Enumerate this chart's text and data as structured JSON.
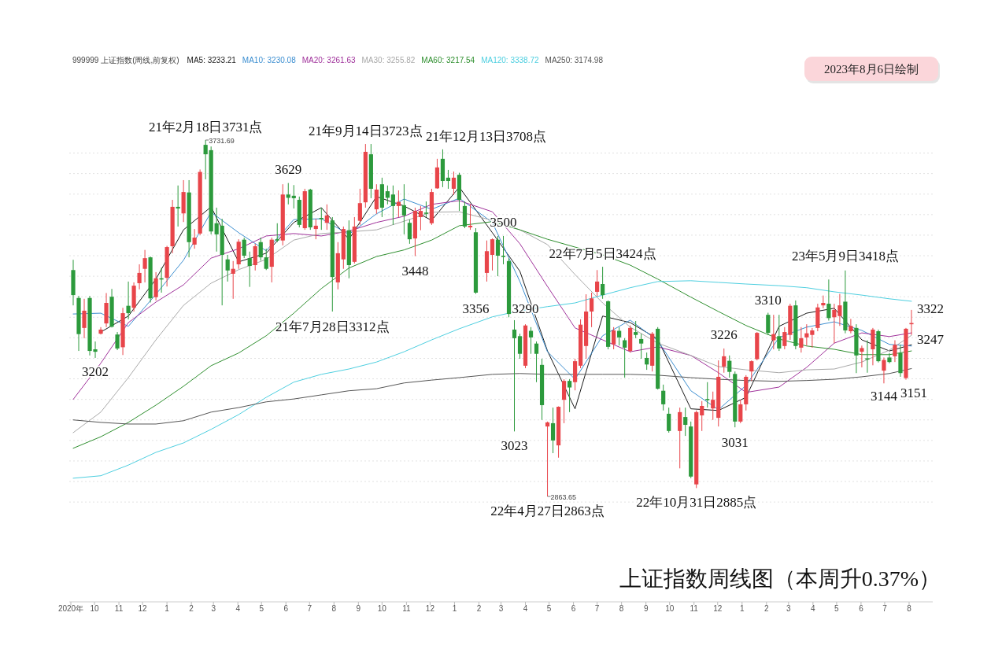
{
  "chart_data": {
    "type": "candlestick",
    "title": "上证指数周线图（本周升0.37%）",
    "subtitle": "999999 上证指数(周线,前复权)",
    "x": [
      "2020-09-04",
      "2020-09-11",
      "2020-09-18",
      "2020-09-25",
      "2020-10-02",
      "2020-10-09",
      "2020-10-16",
      "2020-10-23",
      "2020-10-30",
      "2020-11-06",
      "2020-11-13",
      "2020-11-20",
      "2020-11-27",
      "2020-12-04",
      "2020-12-11",
      "2020-12-18",
      "2020-12-25",
      "2021-01-01",
      "2021-01-08",
      "2021-01-15",
      "2021-01-22",
      "2021-01-29",
      "2021-02-05",
      "2021-02-12",
      "2021-02-19",
      "2021-02-26",
      "2021-03-05",
      "2021-03-12",
      "2021-03-19",
      "2021-03-26",
      "2021-04-02",
      "2021-04-09",
      "2021-04-16",
      "2021-04-23",
      "2021-04-30",
      "2021-05-07",
      "2021-05-14",
      "2021-05-21",
      "2021-05-28",
      "2021-06-04",
      "2021-06-11",
      "2021-06-18",
      "2021-06-25",
      "2021-07-02",
      "2021-07-09",
      "2021-07-16",
      "2021-07-23",
      "2021-07-30",
      "2021-08-06",
      "2021-08-13",
      "2021-08-20",
      "2021-08-27",
      "2021-09-03",
      "2021-09-10",
      "2021-09-17",
      "2021-09-24",
      "2021-10-01",
      "2021-10-08",
      "2021-10-15",
      "2021-10-22",
      "2021-10-29",
      "2021-11-05",
      "2021-11-12",
      "2021-11-19",
      "2021-11-26",
      "2021-12-03",
      "2021-12-10",
      "2021-12-17",
      "2021-12-24",
      "2021-12-31",
      "2022-01-07",
      "2022-01-14",
      "2022-01-21",
      "2022-01-28",
      "2022-02-11",
      "2022-02-18",
      "2022-02-25",
      "2022-03-04",
      "2022-03-11",
      "2022-03-18",
      "2022-03-25",
      "2022-04-01",
      "2022-04-08",
      "2022-04-15",
      "2022-04-22",
      "2022-04-29",
      "2022-05-06",
      "2022-05-13",
      "2022-05-20",
      "2022-05-27",
      "2022-06-03",
      "2022-06-10",
      "2022-06-17",
      "2022-06-24",
      "2022-07-01",
      "2022-07-08",
      "2022-07-15",
      "2022-07-22",
      "2022-07-29",
      "2022-08-05",
      "2022-08-12",
      "2022-08-19",
      "2022-08-26",
      "2022-09-02",
      "2022-09-09",
      "2022-09-16",
      "2022-09-23",
      "2022-09-30",
      "2022-10-14",
      "2022-10-21",
      "2022-10-28",
      "2022-11-04",
      "2022-11-11",
      "2022-11-18",
      "2022-11-25",
      "2022-12-02",
      "2022-12-09",
      "2022-12-16",
      "2022-12-23",
      "2022-12-30",
      "2023-01-06",
      "2023-01-13",
      "2023-01-20",
      "2023-02-03",
      "2023-02-10",
      "2023-02-17",
      "2023-02-24",
      "2023-03-03",
      "2023-03-10",
      "2023-03-17",
      "2023-03-24",
      "2023-03-31",
      "2023-04-07",
      "2023-04-14",
      "2023-04-21",
      "2023-04-28",
      "2023-05-05",
      "2023-05-12",
      "2023-05-19",
      "2023-05-26",
      "2023-06-02",
      "2023-06-09",
      "2023-06-16",
      "2023-06-23",
      "2023-06-30",
      "2023-07-07",
      "2023-07-14",
      "2023-07-21",
      "2023-07-28",
      "2023-08-04"
    ],
    "ohlc": [
      [
        3415,
        3440,
        3329,
        3354
      ],
      [
        3347,
        3352,
        3218,
        3259
      ],
      [
        3274,
        3345,
        3249,
        3316
      ],
      [
        3347,
        3352,
        3207,
        3218
      ],
      [
        3222,
        3241,
        3201,
        3216
      ],
      [
        3260,
        3276,
        3258,
        3270
      ],
      [
        3285,
        3359,
        3276,
        3335
      ],
      [
        3350,
        3369,
        3275,
        3277
      ],
      [
        3258,
        3264,
        3220,
        3224
      ],
      [
        3227,
        3323,
        3208,
        3310
      ],
      [
        3328,
        3387,
        3295,
        3310
      ],
      [
        3323,
        3385,
        3314,
        3377
      ],
      [
        3383,
        3429,
        3368,
        3408
      ],
      [
        3418,
        3464,
        3385,
        3444
      ],
      [
        3446,
        3448,
        3336,
        3346
      ],
      [
        3349,
        3410,
        3341,
        3395
      ],
      [
        3395,
        3421,
        3360,
        3392
      ],
      [
        3396,
        3474,
        3375,
        3471
      ],
      [
        3473,
        3586,
        3456,
        3569
      ],
      [
        3569,
        3621,
        3521,
        3565
      ],
      [
        3553,
        3634,
        3532,
        3605
      ],
      [
        3604,
        3634,
        3446,
        3483
      ],
      [
        3477,
        3515,
        3467,
        3494
      ],
      [
        3504,
        3660,
        3500,
        3654
      ],
      [
        3720,
        3731.69,
        3636,
        3697
      ],
      [
        3707,
        3716,
        3502,
        3509
      ],
      [
        3529,
        3567,
        3460,
        3502
      ],
      [
        3523,
        3540,
        3329,
        3452
      ],
      [
        3441,
        3452,
        3387,
        3414
      ],
      [
        3406,
        3437,
        3345,
        3418
      ],
      [
        3429,
        3490,
        3418,
        3484
      ],
      [
        3489,
        3494,
        3444,
        3450
      ],
      [
        3444,
        3460,
        3374,
        3425
      ],
      [
        3427,
        3479,
        3414,
        3473
      ],
      [
        3483,
        3494,
        3438,
        3446
      ],
      [
        3446,
        3467,
        3415,
        3418
      ],
      [
        3423,
        3494,
        3385,
        3489
      ],
      [
        3490,
        3529,
        3483,
        3487
      ],
      [
        3487,
        3624,
        3475,
        3599
      ],
      [
        3599,
        3627,
        3575,
        3591
      ],
      [
        3596,
        3622,
        3565,
        3590
      ],
      [
        3586,
        3594,
        3519,
        3525
      ],
      [
        3517,
        3613,
        3513,
        3607
      ],
      [
        3611,
        3613,
        3513,
        3519
      ],
      [
        3515,
        3540,
        3490,
        3523
      ],
      [
        3542,
        3567,
        3513,
        3539
      ],
      [
        3530,
        3575,
        3513,
        3548
      ],
      [
        3536,
        3544,
        3314,
        3398
      ],
      [
        3385,
        3483,
        3368,
        3456
      ],
      [
        3441,
        3521,
        3418,
        3515
      ],
      [
        3512,
        3536,
        3395,
        3427
      ],
      [
        3435,
        3544,
        3431,
        3521
      ],
      [
        3535,
        3613,
        3525,
        3578
      ],
      [
        3580,
        3722,
        3567,
        3703
      ],
      [
        3697,
        3722,
        3590,
        3613
      ],
      [
        3563,
        3624,
        3552,
        3611
      ],
      [
        3624,
        3640,
        3544,
        3567
      ],
      [
        3607,
        3621,
        3575,
        3591
      ],
      [
        3599,
        3621,
        3525,
        3571
      ],
      [
        3571,
        3609,
        3544,
        3581
      ],
      [
        3573,
        3624,
        3502,
        3548
      ],
      [
        3530,
        3538,
        3479,
        3490
      ],
      [
        3492,
        3567,
        3449,
        3559
      ],
      [
        3544,
        3571,
        3512,
        3559
      ],
      [
        3555,
        3582,
        3544,
        3552
      ],
      [
        3529,
        3613,
        3525,
        3605
      ],
      [
        3614,
        3686,
        3613,
        3665
      ],
      [
        3686,
        3709,
        3617,
        3632
      ],
      [
        3640,
        3659,
        3613,
        3632
      ],
      [
        3613,
        3655,
        3598,
        3640
      ],
      [
        3647,
        3652,
        3559,
        3586
      ],
      [
        3571,
        3582,
        3517,
        3521
      ],
      [
        3519,
        3575,
        3513,
        3523
      ],
      [
        3507,
        3517,
        3357,
        3360
      ],
      [
        3408,
        3487,
        3387,
        3461
      ],
      [
        3452,
        3492,
        3414,
        3490
      ],
      [
        3489,
        3498,
        3400,
        3450
      ],
      [
        3450,
        3498,
        3429,
        3447
      ],
      [
        3437,
        3444,
        3300,
        3308
      ],
      [
        3270,
        3293,
        3022,
        3249
      ],
      [
        3254,
        3260,
        3199,
        3211
      ],
      [
        3182,
        3283,
        3176,
        3280
      ],
      [
        3267,
        3276,
        3211,
        3251
      ],
      [
        3236,
        3241,
        3142,
        3211
      ],
      [
        3184,
        3199,
        3050,
        3086
      ],
      [
        3034,
        3046,
        2863.65,
        3044
      ],
      [
        3042,
        3080,
        2969,
        3000
      ],
      [
        2988,
        3083,
        2958,
        3082
      ],
      [
        3099,
        3149,
        3042,
        3145
      ],
      [
        3145,
        3149,
        3069,
        3129
      ],
      [
        3142,
        3199,
        3122,
        3193
      ],
      [
        3182,
        3295,
        3176,
        3282
      ],
      [
        3230,
        3356,
        3199,
        3314
      ],
      [
        3314,
        3360,
        3276,
        3346
      ],
      [
        3362,
        3415,
        3351,
        3387
      ],
      [
        3381,
        3423,
        3345,
        3354
      ],
      [
        3339,
        3341,
        3222,
        3228
      ],
      [
        3234,
        3276,
        3222,
        3268
      ],
      [
        3267,
        3276,
        3231,
        3251
      ],
      [
        3244,
        3249,
        3153,
        3226
      ],
      [
        3218,
        3280,
        3214,
        3274
      ],
      [
        3264,
        3291,
        3249,
        3257
      ],
      [
        3247,
        3260,
        3199,
        3236
      ],
      [
        3201,
        3214,
        3172,
        3185
      ],
      [
        3182,
        3264,
        3168,
        3260
      ],
      [
        3272,
        3276,
        3124,
        3126
      ],
      [
        3121,
        3136,
        3073,
        3088
      ],
      [
        3065,
        3080,
        3019,
        3023
      ],
      [
        3023,
        3080,
        2932,
        3069
      ],
      [
        3057,
        3080,
        3011,
        3038
      ],
      [
        3034,
        3046,
        2908,
        2912
      ],
      [
        2893,
        3073,
        2884,
        3069
      ],
      [
        3061,
        3096,
        3023,
        3084
      ],
      [
        3101,
        3142,
        3080,
        3098
      ],
      [
        3078,
        3119,
        3050,
        3099
      ],
      [
        3055,
        3195,
        3034,
        3155
      ],
      [
        3180,
        3224,
        3165,
        3205
      ],
      [
        3194,
        3207,
        3153,
        3167
      ],
      [
        3162,
        3168,
        3032,
        3046
      ],
      [
        3046,
        3099,
        3042,
        3088
      ],
      [
        3088,
        3159,
        3073,
        3155
      ],
      [
        3168,
        3195,
        3145,
        3193
      ],
      [
        3198,
        3264,
        3195,
        3262
      ],
      [
        3306,
        3311,
        3257,
        3262
      ],
      [
        3244,
        3306,
        3222,
        3259
      ],
      [
        3254,
        3306,
        3218,
        3224
      ],
      [
        3230,
        3276,
        3222,
        3264
      ],
      [
        3257,
        3333,
        3245,
        3328
      ],
      [
        3329,
        3341,
        3222,
        3230
      ],
      [
        3226,
        3276,
        3214,
        3249
      ],
      [
        3251,
        3283,
        3231,
        3261
      ],
      [
        3257,
        3274,
        3226,
        3268
      ],
      [
        3274,
        3333,
        3266,
        3324
      ],
      [
        3329,
        3353,
        3322,
        3335
      ],
      [
        3333,
        3392,
        3292,
        3298
      ],
      [
        3300,
        3333,
        3237,
        3318
      ],
      [
        3303,
        3357,
        3279,
        3329
      ],
      [
        3338,
        3414,
        3261,
        3268
      ],
      [
        3266,
        3296,
        3261,
        3279
      ],
      [
        3274,
        3283,
        3164,
        3207
      ],
      [
        3216,
        3231,
        3178,
        3225
      ],
      [
        3200,
        3244,
        3165,
        3197
      ],
      [
        3222,
        3274,
        3183,
        3270
      ],
      [
        3266,
        3270,
        3190,
        3193
      ],
      [
        3170,
        3202,
        3139,
        3196
      ],
      [
        3202,
        3213,
        3188,
        3191
      ],
      [
        3205,
        3244,
        3191,
        3233
      ],
      [
        3213,
        3233,
        3155,
        3164
      ],
      [
        3152,
        3274,
        3148,
        3272
      ],
      [
        3283,
        3318,
        3257,
        3286
      ]
    ],
    "series": [
      {
        "name": "MA5: 3233.21",
        "type": "line",
        "color": "#1a1a1a",
        "x": [
          "2020-10-09",
          "2020-11-13",
          "2020-12-18",
          "2021-01-22",
          "2021-02-26",
          "2021-04-02",
          "2021-05-07",
          "2021-06-11",
          "2021-07-16",
          "2021-08-20",
          "2021-09-24",
          "2021-10-29",
          "2021-12-03",
          "2022-01-07",
          "2022-02-18",
          "2022-03-25",
          "2022-04-29",
          "2022-06-03",
          "2022-07-08",
          "2022-08-12",
          "2022-09-16",
          "2022-10-28",
          "2022-12-02",
          "2023-01-06",
          "2023-02-17",
          "2023-03-24",
          "2023-04-28",
          "2023-06-02",
          "2023-07-07",
          "2023-08-04"
        ],
        "values": [
          3264,
          3303,
          3393,
          3513,
          3569,
          3435,
          3456,
          3531,
          3567,
          3490,
          3594,
          3571,
          3536,
          3617,
          3506,
          3412,
          3218,
          3077,
          3303,
          3287,
          3247,
          3077,
          3073,
          3105,
          3278,
          3310,
          3322,
          3245,
          3218,
          3233
        ]
      },
      {
        "name": "MA10: 3230.08",
        "type": "line",
        "color": "#3d8fd1",
        "x": [
          "2020-09-04",
          "2020-10-09",
          "2020-11-13",
          "2020-12-18",
          "2021-01-22",
          "2021-02-26",
          "2021-04-02",
          "2021-05-07",
          "2021-06-11",
          "2021-07-16",
          "2021-08-20",
          "2021-09-24",
          "2021-10-29",
          "2021-12-03",
          "2022-01-07",
          "2022-02-18",
          "2022-03-25",
          "2022-04-29",
          "2022-06-03",
          "2022-07-08",
          "2022-08-12",
          "2022-09-16",
          "2022-10-28",
          "2022-12-02",
          "2023-01-06",
          "2023-02-17",
          "2023-03-24",
          "2023-04-28",
          "2023-06-02",
          "2023-07-07",
          "2023-08-04"
        ],
        "values": [
          3308,
          3310,
          3278,
          3356,
          3439,
          3556,
          3506,
          3462,
          3538,
          3540,
          3502,
          3552,
          3588,
          3563,
          3590,
          3531,
          3387,
          3216,
          3149,
          3255,
          3293,
          3243,
          3121,
          3075,
          3134,
          3251,
          3276,
          3289,
          3268,
          3234,
          3230
        ]
      },
      {
        "name": "MA20: 3261.63",
        "type": "line",
        "color": "#a0329b",
        "x": [
          "2020-09-04",
          "2020-10-09",
          "2020-11-13",
          "2020-12-18",
          "2021-01-22",
          "2021-02-26",
          "2021-04-02",
          "2021-05-07",
          "2021-06-11",
          "2021-07-16",
          "2021-08-20",
          "2021-09-24",
          "2021-10-29",
          "2021-12-03",
          "2022-01-07",
          "2022-02-18",
          "2022-03-25",
          "2022-04-29",
          "2022-06-03",
          "2022-07-08",
          "2022-08-12",
          "2022-09-16",
          "2022-10-28",
          "2022-12-02",
          "2023-01-06",
          "2023-02-17",
          "2023-03-24",
          "2023-04-28",
          "2023-06-02",
          "2023-07-07",
          "2023-08-04"
        ],
        "values": [
          3100,
          3188,
          3287,
          3337,
          3379,
          3444,
          3467,
          3498,
          3504,
          3498,
          3510,
          3531,
          3546,
          3575,
          3584,
          3557,
          3479,
          3375,
          3274,
          3245,
          3216,
          3228,
          3207,
          3165,
          3117,
          3130,
          3178,
          3237,
          3262,
          3253,
          3262
        ]
      },
      {
        "name": "MA30: 3255.82",
        "type": "line",
        "color": "#a9a9a9",
        "x": [
          "2020-09-04",
          "2020-10-09",
          "2020-11-13",
          "2020-12-18",
          "2021-01-22",
          "2021-02-26",
          "2021-04-02",
          "2021-05-07",
          "2021-06-11",
          "2021-07-16",
          "2021-08-20",
          "2021-09-24",
          "2021-10-29",
          "2021-12-03",
          "2022-01-07",
          "2022-02-18",
          "2022-03-25",
          "2022-04-29",
          "2022-06-03",
          "2022-07-08",
          "2022-08-12",
          "2022-09-16",
          "2022-10-28",
          "2022-12-02",
          "2023-01-06",
          "2023-02-17",
          "2023-03-24",
          "2023-04-28",
          "2023-06-02",
          "2023-07-07",
          "2023-08-04"
        ],
        "values": [
          3019,
          3069,
          3153,
          3245,
          3329,
          3383,
          3416,
          3441,
          3488,
          3504,
          3508,
          3513,
          3534,
          3556,
          3557,
          3536,
          3513,
          3477,
          3404,
          3335,
          3276,
          3237,
          3207,
          3180,
          3172,
          3165,
          3172,
          3174,
          3191,
          3220,
          3256
        ]
      },
      {
        "name": "MA60: 3217.54",
        "type": "line",
        "color": "#2f8f2f",
        "x": [
          "2020-09-04",
          "2020-10-09",
          "2020-11-13",
          "2020-12-18",
          "2021-01-22",
          "2021-02-26",
          "2021-04-02",
          "2021-05-07",
          "2021-06-11",
          "2021-07-16",
          "2021-08-20",
          "2021-09-24",
          "2021-10-29",
          "2021-12-03",
          "2022-01-07",
          "2022-02-18",
          "2022-03-25",
          "2022-04-29",
          "2022-06-03",
          "2022-07-08",
          "2022-08-12",
          "2022-09-16",
          "2022-10-28",
          "2022-12-02",
          "2023-01-06",
          "2023-02-17",
          "2023-03-24",
          "2023-04-28",
          "2023-06-02",
          "2023-07-07",
          "2023-08-04"
        ],
        "values": [
          2981,
          3009,
          3044,
          3086,
          3132,
          3182,
          3213,
          3255,
          3310,
          3370,
          3420,
          3448,
          3464,
          3488,
          3523,
          3533,
          3513,
          3490,
          3471,
          3452,
          3427,
          3393,
          3349,
          3314,
          3280,
          3247,
          3230,
          3222,
          3209,
          3209,
          3218
        ]
      },
      {
        "name": "MA120: 3338.72",
        "type": "line",
        "color": "#4ecfe0",
        "x": [
          "2020-09-04",
          "2020-10-09",
          "2020-11-13",
          "2020-12-18",
          "2021-01-22",
          "2021-02-26",
          "2021-04-02",
          "2021-05-07",
          "2021-06-11",
          "2021-07-16",
          "2021-08-20",
          "2021-09-24",
          "2021-10-29",
          "2021-12-03",
          "2022-01-07",
          "2022-02-18",
          "2022-03-25",
          "2022-04-29",
          "2022-06-03",
          "2022-07-08",
          "2022-08-12",
          "2022-09-16",
          "2022-10-28",
          "2022-12-02",
          "2023-01-06",
          "2023-02-17",
          "2023-03-24",
          "2023-04-28",
          "2023-06-02",
          "2023-07-07",
          "2023-08-04"
        ],
        "values": [
          2908,
          2914,
          2940,
          2971,
          2994,
          3027,
          3063,
          3105,
          3142,
          3161,
          3174,
          3191,
          3216,
          3245,
          3272,
          3301,
          3316,
          3326,
          3335,
          3354,
          3372,
          3387,
          3389,
          3385,
          3381,
          3377,
          3372,
          3362,
          3354,
          3345,
          3339
        ]
      },
      {
        "name": "MA250: 3174.98",
        "type": "line",
        "color": "#555555",
        "x": [
          "2020-09-04",
          "2020-10-09",
          "2020-11-13",
          "2020-12-18",
          "2021-01-22",
          "2021-02-26",
          "2021-04-02",
          "2021-05-07",
          "2021-06-11",
          "2021-07-16",
          "2021-08-20",
          "2021-09-24",
          "2021-10-29",
          "2021-12-03",
          "2022-01-07",
          "2022-02-18",
          "2022-03-25",
          "2022-04-29",
          "2022-06-03",
          "2022-07-08",
          "2022-08-12",
          "2022-09-16",
          "2022-10-28",
          "2022-12-02",
          "2023-01-06",
          "2023-02-17",
          "2023-03-24",
          "2023-04-28",
          "2023-06-02",
          "2023-07-07",
          "2023-08-04"
        ],
        "values": [
          3050,
          3044,
          3040,
          3040,
          3048,
          3069,
          3080,
          3094,
          3101,
          3111,
          3121,
          3126,
          3140,
          3147,
          3153,
          3161,
          3163,
          3161,
          3161,
          3161,
          3161,
          3159,
          3153,
          3149,
          3146,
          3144,
          3146,
          3149,
          3155,
          3163,
          3175
        ]
      }
    ],
    "xlim": [
      "2020-08-30",
      "2023-08-31"
    ],
    "xticks": [
      {
        "value": "2020-09-01",
        "label": "2020年"
      },
      {
        "value": "2020-10-01",
        "label": "10"
      },
      {
        "value": "2020-11-01",
        "label": "11"
      },
      {
        "value": "2020-12-01",
        "label": "12"
      },
      {
        "value": "2021-01-01",
        "label": "1"
      },
      {
        "value": "2021-02-01",
        "label": "2"
      },
      {
        "value": "2021-03-01",
        "label": "3"
      },
      {
        "value": "2021-04-01",
        "label": "4"
      },
      {
        "value": "2021-05-01",
        "label": "5"
      },
      {
        "value": "2021-06-01",
        "label": "6"
      },
      {
        "value": "2021-07-01",
        "label": "7"
      },
      {
        "value": "2021-08-01",
        "label": "8"
      },
      {
        "value": "2021-09-01",
        "label": "9"
      },
      {
        "value": "2021-10-01",
        "label": "10"
      },
      {
        "value": "2021-11-01",
        "label": "11"
      },
      {
        "value": "2021-12-01",
        "label": "12"
      },
      {
        "value": "2022-01-01",
        "label": "1"
      },
      {
        "value": "2022-02-01",
        "label": "2"
      },
      {
        "value": "2022-03-01",
        "label": "3"
      },
      {
        "value": "2022-04-01",
        "label": "4"
      },
      {
        "value": "2022-05-01",
        "label": "5"
      },
      {
        "value": "2022-06-01",
        "label": "6"
      },
      {
        "value": "2022-07-01",
        "label": "7"
      },
      {
        "value": "2022-08-01",
        "label": "8"
      },
      {
        "value": "2022-09-01",
        "label": "9"
      },
      {
        "value": "2022-10-01",
        "label": "10"
      },
      {
        "value": "2022-11-01",
        "label": "11"
      },
      {
        "value": "2022-12-01",
        "label": "12"
      },
      {
        "value": "2023-01-01",
        "label": "1"
      },
      {
        "value": "2023-02-01",
        "label": "2"
      },
      {
        "value": "2023-03-01",
        "label": "3"
      },
      {
        "value": "2023-04-01",
        "label": "4"
      },
      {
        "value": "2023-05-01",
        "label": "5"
      },
      {
        "value": "2023-06-01",
        "label": "6"
      },
      {
        "value": "2023-07-01",
        "label": "7"
      },
      {
        "value": "2023-08-01",
        "label": "8"
      }
    ],
    "yticks": [
      {
        "value": 2850,
        "label": null
      },
      {
        "value": 2900,
        "label": null
      },
      {
        "value": 2950,
        "label": null
      },
      {
        "value": 3000,
        "label": null
      },
      {
        "value": 3050,
        "label": null
      },
      {
        "value": 3100,
        "label": null
      },
      {
        "value": 3150,
        "label": null
      },
      {
        "value": 3200,
        "label": null
      },
      {
        "value": 3250,
        "label": null
      },
      {
        "value": 3300,
        "label": null
      },
      {
        "value": 3350,
        "label": null
      },
      {
        "value": 3400,
        "label": null
      },
      {
        "value": 3450,
        "label": null
      },
      {
        "value": 3500,
        "label": null
      },
      {
        "value": 3550,
        "label": null
      },
      {
        "value": 3600,
        "label": null
      },
      {
        "value": 3650,
        "label": null
      },
      {
        "value": 3700,
        "label": null
      }
    ],
    "tick_labels": "x",
    "grid": "y",
    "legend": "top left",
    "annotations": [
      "2023年8月6日绘制",
      {
        "text": "3202",
        "x": "2020-10-02",
        "y": 3202
      },
      {
        "text": "21年2月18日3731点",
        "x": "2021-02-19",
        "y": 3731
      },
      {
        "text": "3731.69",
        "x": "2021-02-19",
        "y": 3731.69
      },
      {
        "text": "3629",
        "x": "2021-06-04",
        "y": 3629
      },
      {
        "text": "21年7月28日3312点",
        "x": "2021-07-30",
        "y": 3312
      },
      {
        "text": "21年9月14日3723点",
        "x": "2021-09-10",
        "y": 3723
      },
      {
        "text": "3448",
        "x": "2021-11-12",
        "y": 3448
      },
      {
        "text": "21年12月13日3708点",
        "x": "2021-12-17",
        "y": 3708
      },
      {
        "text": "3356",
        "x": "2022-01-28",
        "y": 3356
      },
      {
        "text": "3500",
        "x": "2022-03-04",
        "y": 3500
      },
      {
        "text": "3023",
        "x": "2022-03-18",
        "y": 3023
      },
      {
        "text": "3290",
        "x": "2022-04-01",
        "y": 3290
      },
      {
        "text": "22年4月27日2863点",
        "x": "2022-04-29",
        "y": 2863
      },
      {
        "text": "2863.65",
        "x": "2022-04-29",
        "y": 2863.65
      },
      {
        "text": "22年7月5日3424点",
        "x": "2022-07-08",
        "y": 3424
      },
      {
        "text": "22年10月31日2885点",
        "x": "2022-11-04",
        "y": 2885
      },
      {
        "text": "3226",
        "x": "2022-12-09",
        "y": 3226
      },
      {
        "text": "3031",
        "x": "2022-12-23",
        "y": 3031
      },
      {
        "text": "3310",
        "x": "2023-02-03",
        "y": 3310
      },
      {
        "text": "23年5月9日3418点",
        "x": "2023-05-12",
        "y": 3418
      },
      {
        "text": "3144",
        "x": "2023-06-30",
        "y": 3144
      },
      {
        "text": "3151",
        "x": "2023-07-28",
        "y": 3151
      },
      {
        "text": "3322",
        "x": "2023-08-04",
        "y": 3322
      },
      {
        "text": "3247",
        "x": "2023-08-04",
        "y": 3247
      }
    ]
  }
}
